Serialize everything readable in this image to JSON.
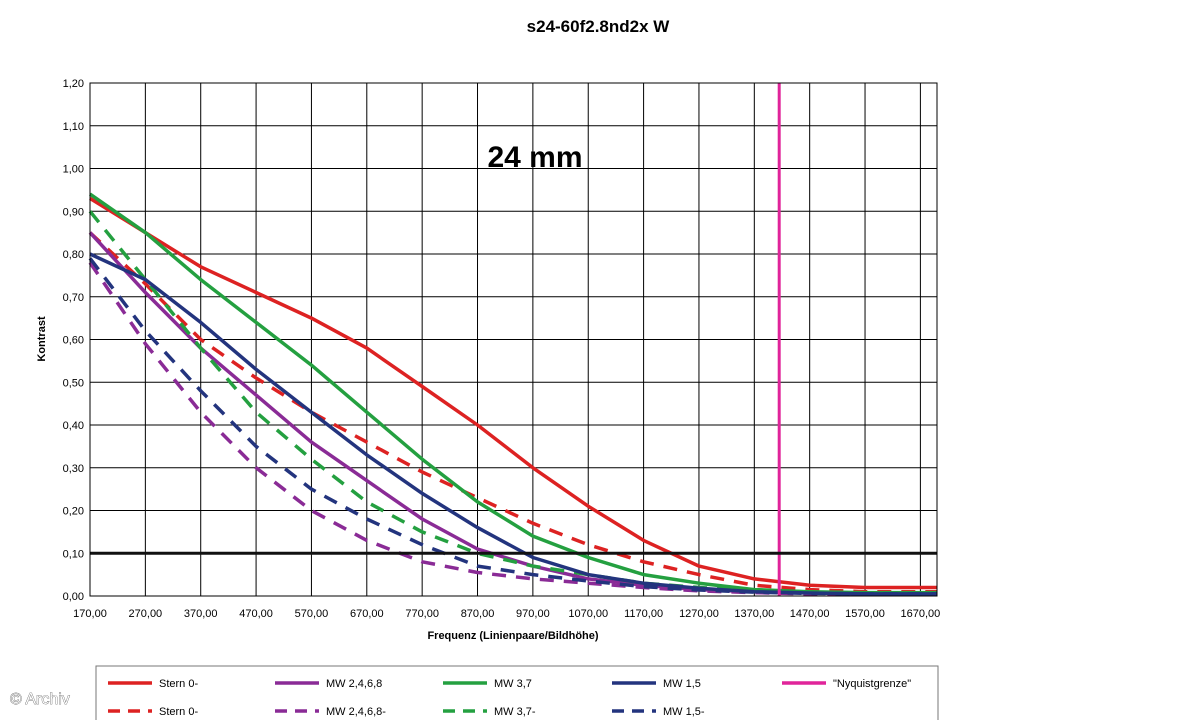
{
  "chart_data": {
    "type": "line",
    "title": "s24-60f2.8nd2x W",
    "annotation": "24 mm",
    "xlabel": "Frequenz (Linienpaare/Bildhöhe)",
    "ylabel": "Kontrast",
    "xlim": [
      170,
      1700
    ],
    "ylim": [
      0,
      1.2
    ],
    "xticks": [
      "170,00",
      "270,00",
      "370,00",
      "470,00",
      "570,00",
      "670,00",
      "770,00",
      "870,00",
      "970,00",
      "1070,00",
      "1170,00",
      "1270,00",
      "1370,00",
      "1470,00",
      "1570,00",
      "1670,00"
    ],
    "yticks": [
      "0,00",
      "0,10",
      "0,20",
      "0,30",
      "0,40",
      "0,50",
      "0,60",
      "0,70",
      "0,80",
      "0,90",
      "1,00",
      "1,10",
      "1,20"
    ],
    "grid": true,
    "reference_line": {
      "y": 0.1,
      "color": "#111111"
    },
    "legend_position": "bottom",
    "series": [
      {
        "name": "Stern 0-",
        "color": "#dd2222",
        "dash": false,
        "x": [
          170,
          270,
          370,
          470,
          570,
          670,
          770,
          870,
          970,
          1070,
          1170,
          1270,
          1370,
          1470,
          1570,
          1700
        ],
        "y": [
          0.93,
          0.85,
          0.77,
          0.71,
          0.65,
          0.58,
          0.49,
          0.4,
          0.3,
          0.21,
          0.13,
          0.07,
          0.04,
          0.025,
          0.02,
          0.02
        ]
      },
      {
        "name": "Stern 0-",
        "color": "#dd2222",
        "dash": true,
        "x": [
          170,
          270,
          370,
          470,
          570,
          670,
          770,
          870,
          970,
          1070,
          1170,
          1270,
          1370,
          1470,
          1570,
          1700
        ],
        "y": [
          0.85,
          0.73,
          0.6,
          0.51,
          0.43,
          0.36,
          0.29,
          0.23,
          0.17,
          0.12,
          0.08,
          0.05,
          0.025,
          0.015,
          0.01,
          0.01
        ]
      },
      {
        "name": "MW 2,4,6,8",
        "color": "#8a2b96",
        "dash": false,
        "x": [
          170,
          270,
          370,
          470,
          570,
          670,
          770,
          870,
          970,
          1070,
          1170,
          1270,
          1370,
          1470,
          1570,
          1700
        ],
        "y": [
          0.85,
          0.71,
          0.58,
          0.47,
          0.36,
          0.27,
          0.18,
          0.11,
          0.07,
          0.04,
          0.025,
          0.015,
          0.01,
          0.007,
          0.005,
          0.005
        ]
      },
      {
        "name": "MW 2,4,6,8-",
        "color": "#8a2b96",
        "dash": true,
        "x": [
          170,
          270,
          370,
          470,
          570,
          670,
          770,
          870,
          970,
          1070,
          1170,
          1270,
          1370,
          1470,
          1570,
          1700
        ],
        "y": [
          0.78,
          0.59,
          0.43,
          0.3,
          0.2,
          0.13,
          0.08,
          0.055,
          0.04,
          0.03,
          0.02,
          0.012,
          0.008,
          0.005,
          0.004,
          0.004
        ]
      },
      {
        "name": "MW 3,7",
        "color": "#24a040",
        "dash": false,
        "x": [
          170,
          270,
          370,
          470,
          570,
          670,
          770,
          870,
          970,
          1070,
          1170,
          1270,
          1370,
          1470,
          1570,
          1700
        ],
        "y": [
          0.94,
          0.85,
          0.74,
          0.64,
          0.54,
          0.43,
          0.32,
          0.22,
          0.14,
          0.09,
          0.05,
          0.03,
          0.015,
          0.01,
          0.008,
          0.008
        ]
      },
      {
        "name": "MW 3,7-",
        "color": "#24a040",
        "dash": true,
        "x": [
          170,
          270,
          370,
          470,
          570,
          670,
          770,
          870,
          970,
          1070,
          1170,
          1270,
          1370,
          1470,
          1570,
          1700
        ],
        "y": [
          0.9,
          0.74,
          0.58,
          0.43,
          0.32,
          0.22,
          0.15,
          0.1,
          0.07,
          0.05,
          0.03,
          0.02,
          0.012,
          0.008,
          0.006,
          0.006
        ]
      },
      {
        "name": "MW 1,5",
        "color": "#23347e",
        "dash": false,
        "x": [
          170,
          270,
          370,
          470,
          570,
          670,
          770,
          870,
          970,
          1070,
          1170,
          1270,
          1370,
          1470,
          1570,
          1700
        ],
        "y": [
          0.8,
          0.74,
          0.64,
          0.53,
          0.43,
          0.33,
          0.24,
          0.16,
          0.09,
          0.05,
          0.03,
          0.018,
          0.01,
          0.007,
          0.005,
          0.005
        ]
      },
      {
        "name": "MW 1,5-",
        "color": "#23347e",
        "dash": true,
        "x": [
          170,
          270,
          370,
          470,
          570,
          670,
          770,
          870,
          970,
          1070,
          1170,
          1270,
          1370,
          1470,
          1570,
          1700
        ],
        "y": [
          0.79,
          0.62,
          0.48,
          0.35,
          0.25,
          0.18,
          0.12,
          0.07,
          0.05,
          0.035,
          0.022,
          0.014,
          0.009,
          0.006,
          0.005,
          0.005
        ]
      },
      {
        "name": "\"Nyquistgrenze\"",
        "color": "#e0249a",
        "dash": false,
        "vertical": true,
        "x": [
          1415,
          1415
        ],
        "y": [
          0,
          1.2
        ]
      }
    ]
  },
  "legend": {
    "row1": [
      {
        "label": "Stern 0-",
        "color": "#dd2222",
        "dash": false
      },
      {
        "label": "MW 2,4,6,8",
        "color": "#8a2b96",
        "dash": false
      },
      {
        "label": "MW 3,7",
        "color": "#24a040",
        "dash": false
      },
      {
        "label": "MW 1,5",
        "color": "#23347e",
        "dash": false
      },
      {
        "label": "\"Nyquistgrenze\"",
        "color": "#e0249a",
        "dash": false
      }
    ],
    "row2": [
      {
        "label": "Stern 0-",
        "color": "#dd2222",
        "dash": true
      },
      {
        "label": "MW 2,4,6,8-",
        "color": "#8a2b96",
        "dash": true
      },
      {
        "label": "MW 3,7-",
        "color": "#24a040",
        "dash": true
      },
      {
        "label": "MW 1,5-",
        "color": "#23347e",
        "dash": true
      }
    ]
  },
  "watermark": "© Archiv"
}
